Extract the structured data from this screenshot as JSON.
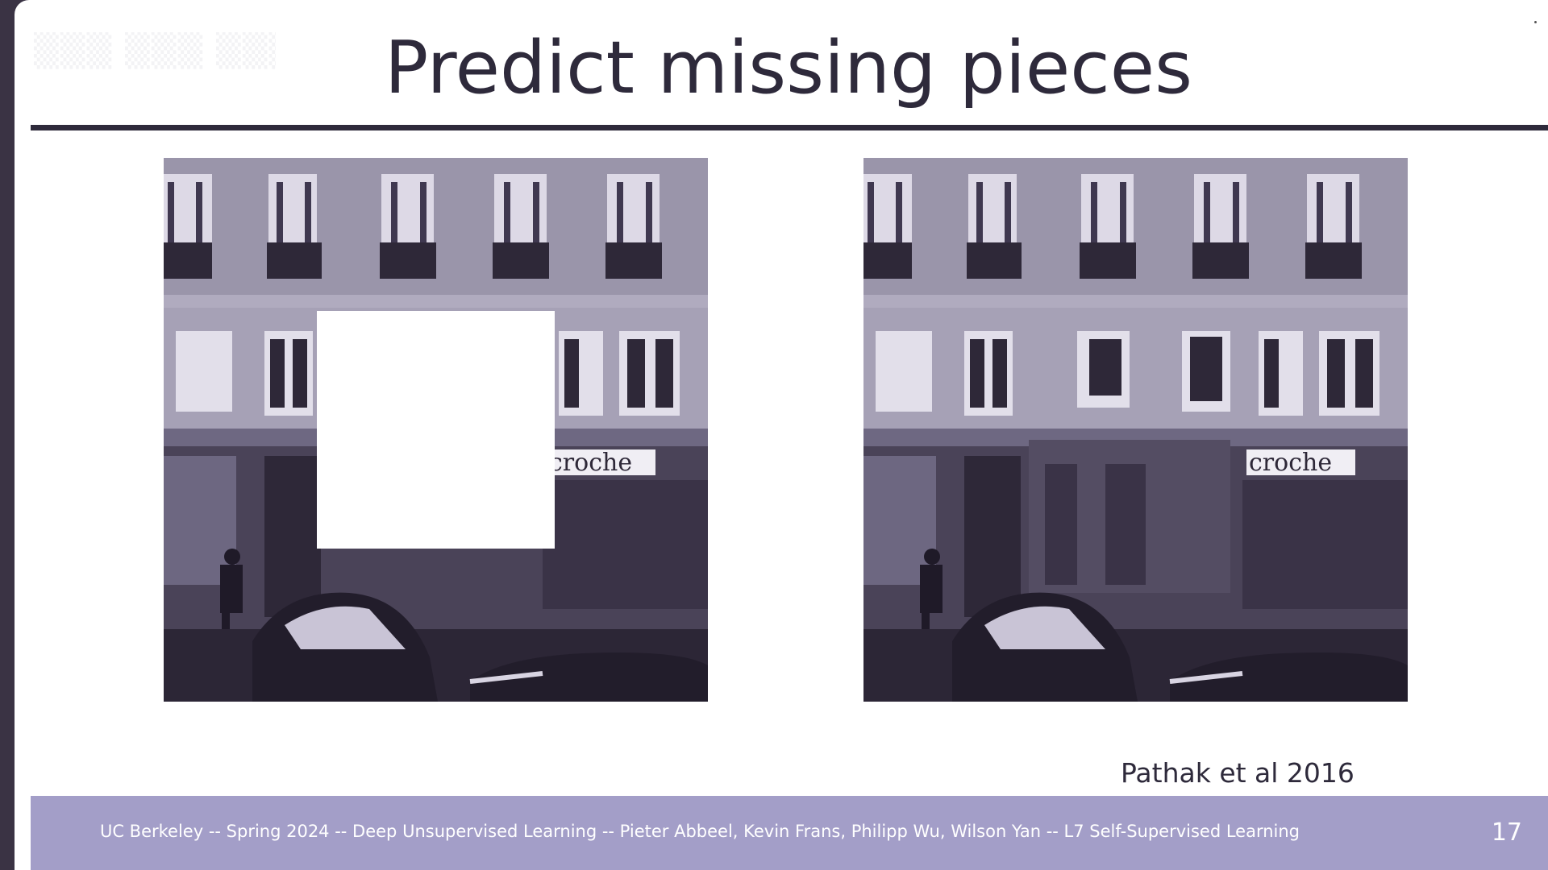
{
  "slide": {
    "title": "Predict missing pieces",
    "caption": "Pathak et al 2016",
    "footer": "UC Berkeley -- Spring 2024 -- Deep Unsupervised Learning -- Pieter Abbeel, Kevin Frans, Philipp Wu, Wilson Yan -- L7 Self-Supervised Learning",
    "page_number": "17"
  },
  "images": {
    "left": {
      "shop_sign": "croche"
    },
    "right": {
      "shop_sign": "croche"
    }
  },
  "colors": {
    "title": "#2e2a3b",
    "footer_bar": "#a39ec8",
    "image_tint": "#3b3447"
  }
}
